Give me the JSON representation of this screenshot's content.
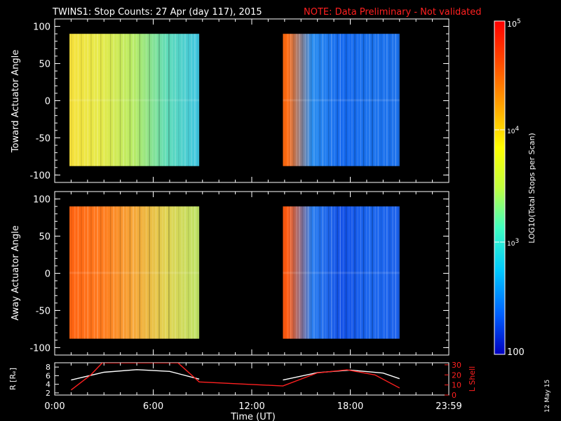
{
  "chart_data": [
    {
      "type": "heatmap",
      "title": "TWINS1: Stop Counts: 27 Apr (day 117), 2015",
      "note": "NOTE: Data Preliminary - Not validated",
      "ylabel": "Toward Actuator Angle",
      "ylim": [
        -110,
        110
      ],
      "yticks": [
        "100",
        "50",
        "0",
        "-50",
        "-100"
      ],
      "xlim": [
        0,
        24
      ],
      "blocks": [
        {
          "x_start": 0.9,
          "x_end": 8.8,
          "y_start": -88,
          "y_end": 90,
          "colors": [
            "#f7e13a",
            "#e4ea4a",
            "#b6eb66",
            "#5fdcb8",
            "#3fc5e2"
          ]
        },
        {
          "x_start": 13.9,
          "x_end": 21.0,
          "y_start": -88,
          "y_end": 90,
          "colors": [
            "#ff6a10",
            "#2a8ef0",
            "#1468f0",
            "#1a72ee",
            "#1a70ec"
          ]
        }
      ]
    },
    {
      "type": "heatmap",
      "ylabel": "Away Actuator Angle",
      "ylim": [
        -110,
        110
      ],
      "yticks": [
        "100",
        "50",
        "0",
        "-50",
        "-100"
      ],
      "xlim": [
        0,
        24
      ],
      "blocks": [
        {
          "x_start": 0.9,
          "x_end": 8.8,
          "y_start": -88,
          "y_end": 90,
          "colors": [
            "#ff6210",
            "#ff7a1c",
            "#f6a838",
            "#e0d452",
            "#bde266"
          ]
        },
        {
          "x_start": 13.9,
          "x_end": 21.0,
          "y_start": -88,
          "y_end": 90,
          "colors": [
            "#ff5a10",
            "#2a7ef0",
            "#1250e8",
            "#1a66ee",
            "#1a60ec"
          ]
        }
      ]
    },
    {
      "type": "line",
      "ylabel": "R [Rₑ]",
      "y2label": "L Shell",
      "yticks": [
        "8",
        "6",
        "4",
        "2"
      ],
      "y2ticks": [
        "30",
        "20",
        "10",
        "0"
      ],
      "xticks": [
        "0:00",
        "6:00",
        "12:00",
        "18:00",
        "23:59"
      ],
      "xlabel": "Time (UT)",
      "series": [
        {
          "color": "#ffffff",
          "x": [
            1.0,
            3.0,
            5.0,
            7.0,
            8.8,
            13.9,
            16.0,
            18.0,
            20.0,
            21.0
          ],
          "y": [
            5.0,
            6.8,
            7.4,
            7.0,
            5.2,
            5.0,
            6.7,
            7.3,
            6.6,
            5.3
          ]
        },
        {
          "color": "#ff2020",
          "x": [
            1.0,
            2.2,
            2.9,
            7.5,
            8.8,
            13.9,
            16.0,
            17.8,
            19.5,
            21.0
          ],
          "y2": [
            5,
            20,
            32,
            32,
            13,
            9,
            22,
            25,
            20,
            7
          ]
        }
      ]
    }
  ],
  "colorbar": {
    "label": "LOG10(Total Stops per Scan)",
    "top": "10",
    "top_exp": "5",
    "mid": "10",
    "mid_exp": "4",
    "low": "10",
    "low_exp": "3",
    "bottom": "100",
    "colors": [
      "#ff0000",
      "#ff4800",
      "#ffa000",
      "#ffff00",
      "#c0ff40",
      "#40ffc0",
      "#00c8ff",
      "#0060ff",
      "#0000c0"
    ]
  },
  "date_stamp": "12 May 15"
}
